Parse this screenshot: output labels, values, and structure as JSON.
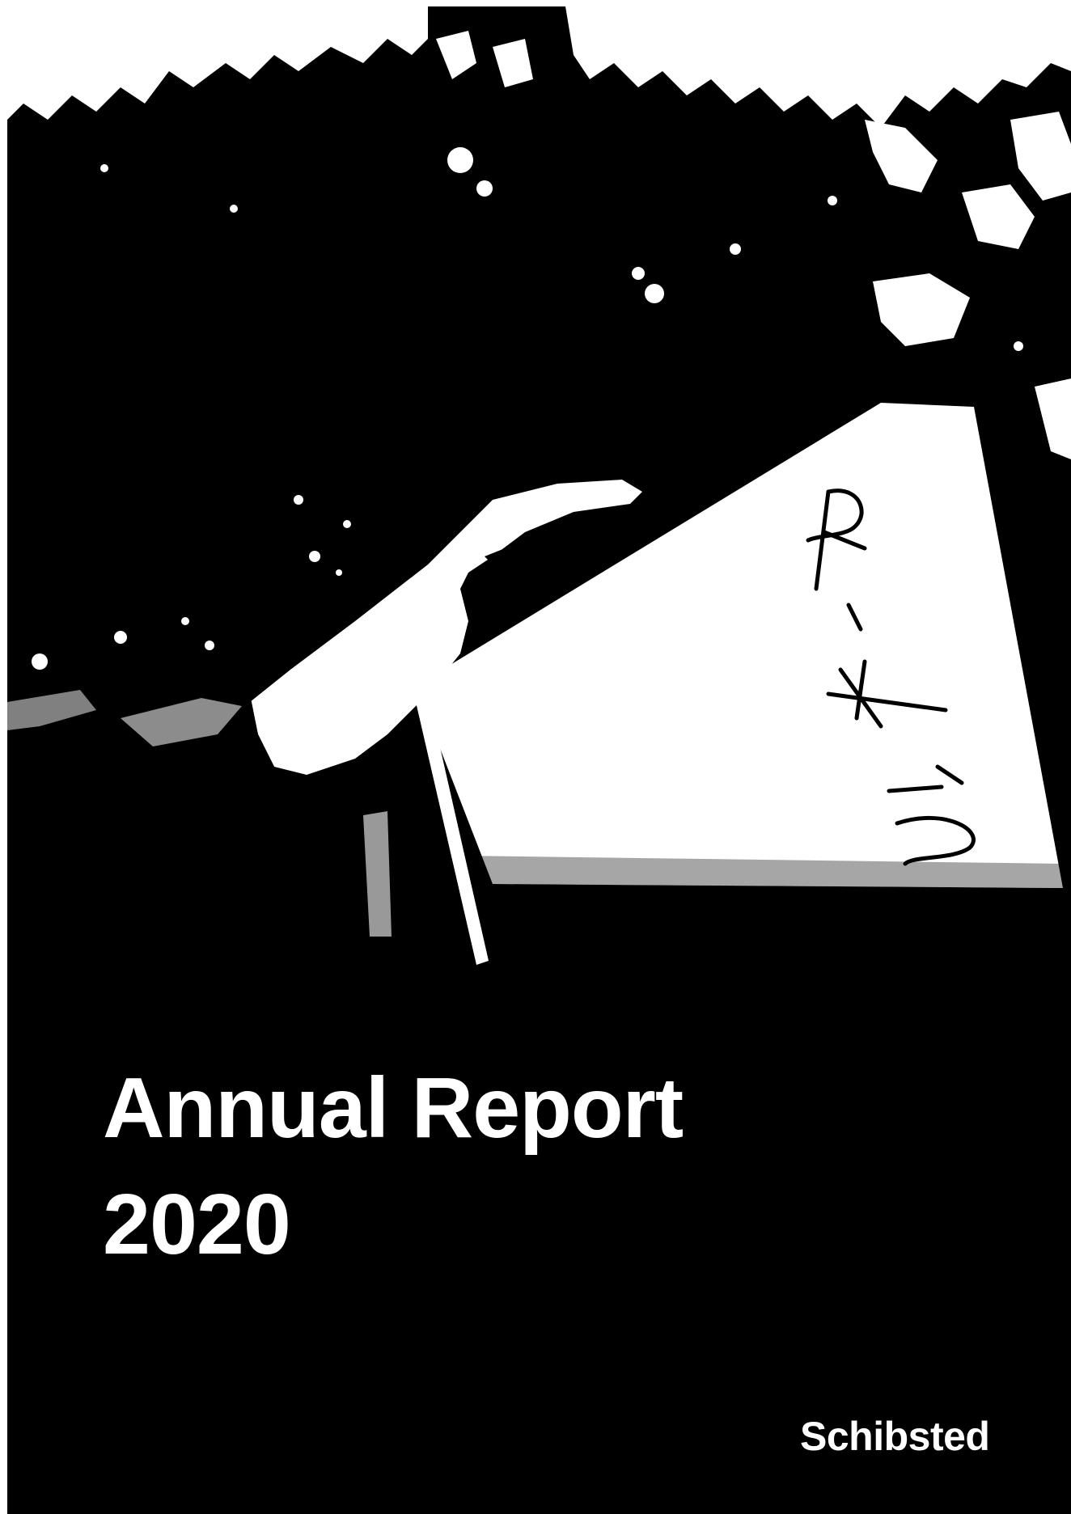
{
  "cover": {
    "title_line1": "Annual Report",
    "title_line2": "2020",
    "logo_text": "Schibsted",
    "sign_handwriting": "R-X12",
    "photo_description_icon": "hand-holding-sign-photo",
    "colors": {
      "background": "#000000",
      "text": "#ffffff"
    }
  }
}
